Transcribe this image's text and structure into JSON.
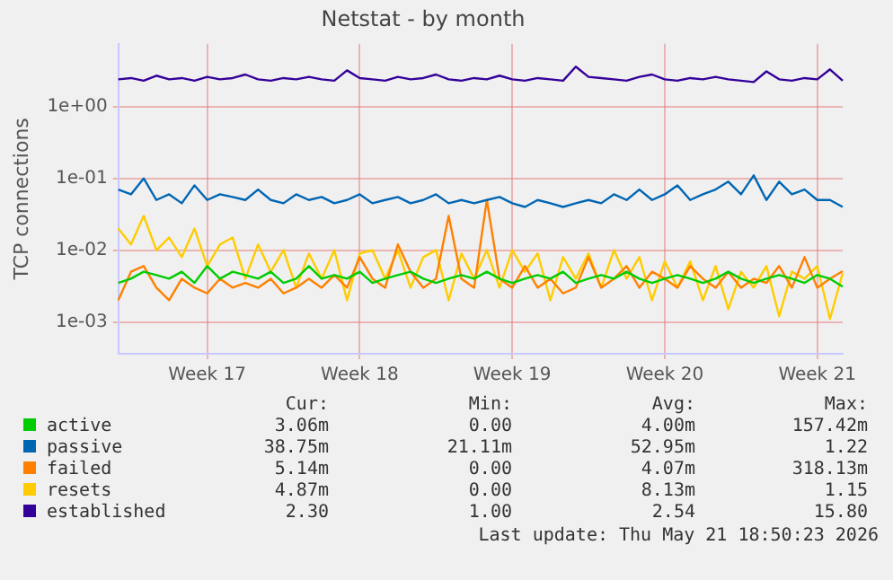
{
  "chart_data": {
    "type": "line",
    "title": "Netstat - by month",
    "ylabel": "TCP connections",
    "log": "y",
    "grid": true,
    "legend": "bottom",
    "marker": "none",
    "line_style": "solid",
    "ylim": [
      0.00036,
      7.5
    ],
    "yticks": [
      {
        "value": 0.001,
        "label": "1e-03"
      },
      {
        "value": 0.01,
        "label": "1e-02"
      },
      {
        "value": 0.1,
        "label": "1e-01"
      },
      {
        "value": 1,
        "label": "1e+00"
      }
    ],
    "categories": [
      null,
      null,
      null,
      null,
      null,
      null,
      null,
      "Week 17",
      null,
      null,
      null,
      null,
      null,
      null,
      null,
      null,
      null,
      null,
      null,
      "Week 18",
      null,
      null,
      null,
      null,
      null,
      null,
      null,
      null,
      null,
      null,
      null,
      "Week 19",
      null,
      null,
      null,
      null,
      null,
      null,
      null,
      null,
      null,
      null,
      null,
      "Week 20",
      null,
      null,
      null,
      null,
      null,
      null,
      null,
      null,
      null,
      null,
      null,
      "Week 21",
      null,
      null
    ],
    "series": [
      {
        "name": "active",
        "color": "#00cc00",
        "values": [
          0.0035,
          0.004,
          0.005,
          0.0045,
          0.004,
          0.005,
          0.0035,
          0.006,
          0.004,
          0.005,
          0.0045,
          0.004,
          0.005,
          0.0035,
          0.004,
          0.006,
          0.004,
          0.0045,
          0.004,
          0.005,
          0.0035,
          0.004,
          0.0045,
          0.005,
          0.004,
          0.0035,
          0.004,
          0.0045,
          0.004,
          0.005,
          0.004,
          0.0035,
          0.004,
          0.0045,
          0.004,
          0.005,
          0.0035,
          0.004,
          0.0045,
          0.004,
          0.005,
          0.004,
          0.0035,
          0.004,
          0.0045,
          0.004,
          0.0035,
          0.004,
          0.005,
          0.004,
          0.0035,
          0.004,
          0.0045,
          0.004,
          0.0035,
          0.0045,
          0.004,
          0.0031
        ]
      },
      {
        "name": "passive",
        "color": "#0066b3",
        "values": [
          0.07,
          0.06,
          0.1,
          0.05,
          0.06,
          0.045,
          0.08,
          0.05,
          0.06,
          0.055,
          0.05,
          0.07,
          0.05,
          0.045,
          0.06,
          0.05,
          0.055,
          0.045,
          0.05,
          0.06,
          0.045,
          0.05,
          0.055,
          0.045,
          0.05,
          0.06,
          0.045,
          0.05,
          0.045,
          0.05,
          0.055,
          0.045,
          0.04,
          0.05,
          0.045,
          0.04,
          0.045,
          0.05,
          0.045,
          0.06,
          0.05,
          0.07,
          0.05,
          0.06,
          0.08,
          0.05,
          0.06,
          0.07,
          0.09,
          0.06,
          0.11,
          0.05,
          0.09,
          0.06,
          0.07,
          0.05,
          0.05,
          0.04
        ]
      },
      {
        "name": "failed",
        "color": "#ff8000",
        "values": [
          0.002,
          0.005,
          0.006,
          0.003,
          0.002,
          0.004,
          0.003,
          0.0025,
          0.004,
          0.003,
          0.0035,
          0.003,
          0.004,
          0.0025,
          0.003,
          0.004,
          0.003,
          0.0045,
          0.003,
          0.008,
          0.004,
          0.003,
          0.012,
          0.005,
          0.003,
          0.004,
          0.03,
          0.004,
          0.003,
          0.05,
          0.004,
          0.003,
          0.006,
          0.003,
          0.004,
          0.0025,
          0.003,
          0.008,
          0.003,
          0.004,
          0.006,
          0.003,
          0.005,
          0.004,
          0.003,
          0.006,
          0.004,
          0.003,
          0.005,
          0.003,
          0.004,
          0.0035,
          0.006,
          0.003,
          0.008,
          0.003,
          0.004,
          0.0051
        ]
      },
      {
        "name": "resets",
        "color": "#ffcc00",
        "values": [
          0.02,
          0.012,
          0.03,
          0.01,
          0.015,
          0.008,
          0.02,
          0.006,
          0.012,
          0.015,
          0.004,
          0.012,
          0.005,
          0.01,
          0.003,
          0.009,
          0.004,
          0.01,
          0.002,
          0.009,
          0.01,
          0.004,
          0.01,
          0.003,
          0.008,
          0.01,
          0.002,
          0.009,
          0.004,
          0.01,
          0.003,
          0.01,
          0.005,
          0.009,
          0.002,
          0.008,
          0.004,
          0.009,
          0.003,
          0.01,
          0.004,
          0.008,
          0.002,
          0.007,
          0.003,
          0.007,
          0.002,
          0.006,
          0.0015,
          0.005,
          0.003,
          0.006,
          0.0012,
          0.005,
          0.004,
          0.006,
          0.0011,
          0.0048
        ]
      },
      {
        "name": "established",
        "color": "#330099",
        "values": [
          2.4,
          2.5,
          2.3,
          2.7,
          2.4,
          2.5,
          2.3,
          2.6,
          2.4,
          2.5,
          2.8,
          2.4,
          2.3,
          2.5,
          2.4,
          2.6,
          2.4,
          2.3,
          3.2,
          2.5,
          2.4,
          2.3,
          2.6,
          2.4,
          2.5,
          2.8,
          2.4,
          2.3,
          2.5,
          2.4,
          2.7,
          2.4,
          2.3,
          2.5,
          2.4,
          2.3,
          3.6,
          2.6,
          2.5,
          2.4,
          2.3,
          2.6,
          2.8,
          2.4,
          2.3,
          2.5,
          2.4,
          2.6,
          2.4,
          2.3,
          2.2,
          3.1,
          2.4,
          2.3,
          2.5,
          2.4,
          3.3,
          2.3
        ]
      }
    ],
    "annotations": [
      "Cur:",
      "Min:",
      "Avg:",
      "Max:",
      "3.06m",
      "0.00",
      "4.00m",
      "157.42m",
      "38.75m",
      "21.11m",
      "52.95m",
      "1.22",
      "5.14m",
      "0.00",
      "4.07m",
      "318.13m",
      "4.87m",
      "0.00",
      "8.13m",
      "1.15",
      "2.30",
      "1.00",
      "2.54",
      "15.80",
      "Last update: Thu May 21 18:50:23 2026"
    ]
  }
}
